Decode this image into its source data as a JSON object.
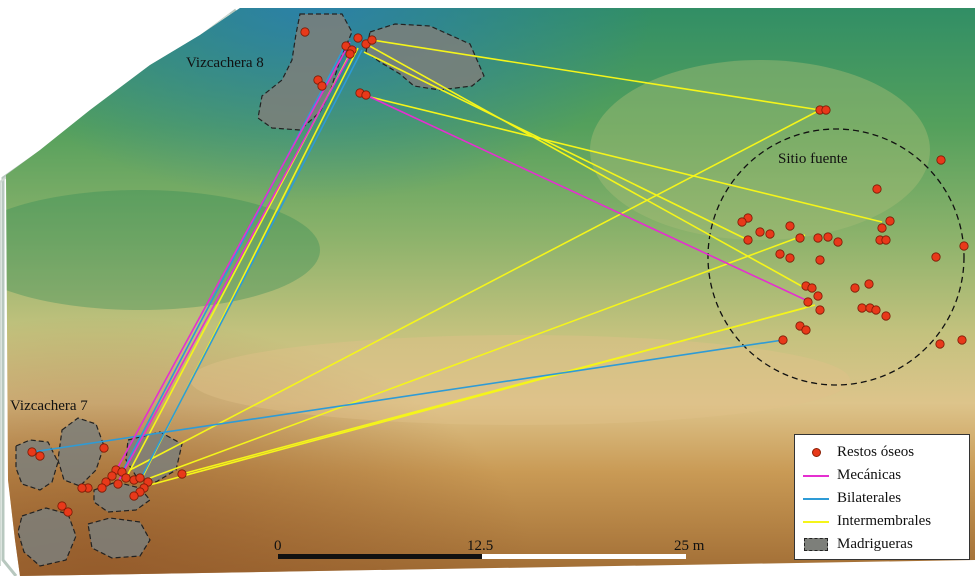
{
  "labels": {
    "site_a": "Vizcachera 8",
    "site_b": "Vizcachera 7",
    "source": "Sitio fuente"
  },
  "scale": {
    "tick_0": "0",
    "tick_mid": "12.5",
    "tick_end": "25 m"
  },
  "legend": {
    "items": [
      {
        "label": "Restos óseos",
        "symbol": "dot",
        "color": "#e8391a"
      },
      {
        "label": "Mecánicas",
        "symbol": "line",
        "color": "#e52fd0"
      },
      {
        "label": "Bilaterales",
        "symbol": "line",
        "color": "#2e9bd6"
      },
      {
        "label": "Intermembrales",
        "symbol": "line",
        "color": "#f5f51a"
      },
      {
        "label": "Madrigueras",
        "symbol": "polygon",
        "color": "#7d7f7a"
      }
    ]
  },
  "colors": {
    "bone": "#e8391a",
    "mechanical": "#e52fd0",
    "bilateral": "#2e9bd6",
    "intermembral": "#f5f51a",
    "burrow": "#7d7f7a"
  }
}
